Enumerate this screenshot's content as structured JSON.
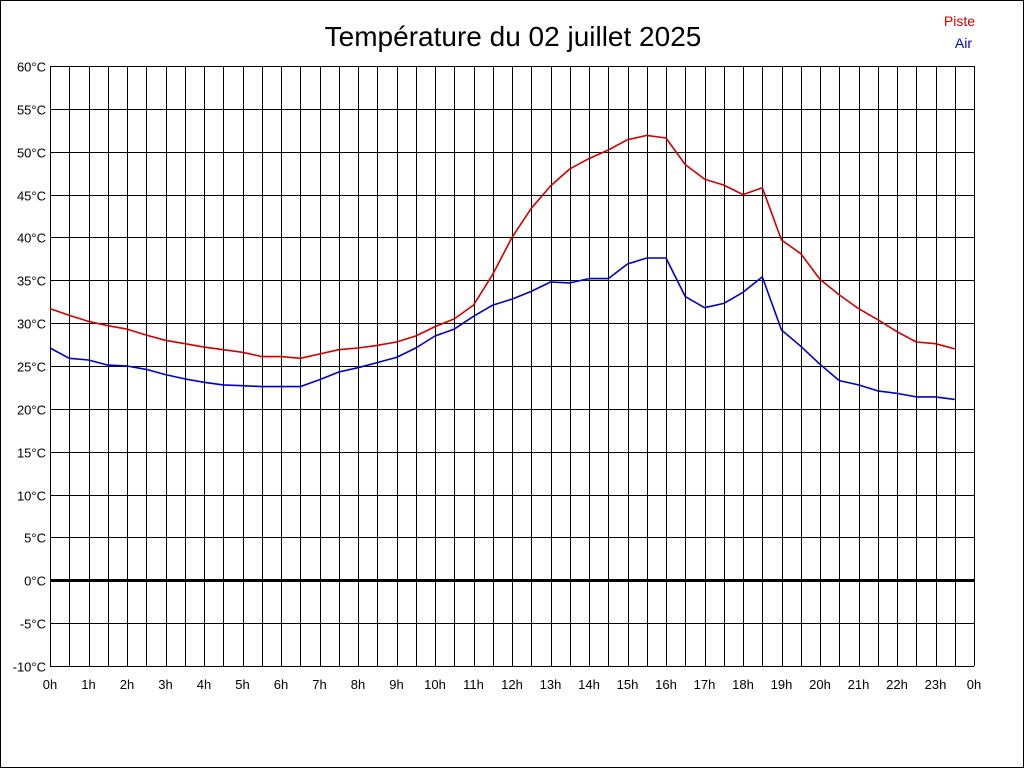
{
  "chart_data": {
    "type": "line",
    "title": "Température du 02 juillet 2025",
    "xlabel": "",
    "ylabel": "",
    "x": [
      0,
      0.5,
      1,
      1.5,
      2,
      2.5,
      3,
      3.5,
      4,
      4.5,
      5,
      5.5,
      6,
      6.5,
      7,
      7.5,
      8,
      8.5,
      9,
      9.5,
      10,
      10.5,
      11,
      11.5,
      12,
      12.5,
      13,
      13.5,
      14,
      14.5,
      15,
      15.5,
      16,
      16.5,
      17,
      17.5,
      18,
      18.5,
      19,
      19.5,
      20,
      20.5,
      21,
      21.5,
      22,
      22.5,
      23,
      23.5
    ],
    "x_tick_labels": [
      "0h",
      "1h",
      "2h",
      "3h",
      "4h",
      "5h",
      "6h",
      "7h",
      "8h",
      "9h",
      "10h",
      "11h",
      "12h",
      "13h",
      "14h",
      "15h",
      "16h",
      "17h",
      "18h",
      "19h",
      "20h",
      "21h",
      "22h",
      "23h",
      "0h"
    ],
    "xlim": [
      0,
      24
    ],
    "y_tick_labels": [
      "60°C",
      "55°C",
      "50°C",
      "45°C",
      "40°C",
      "35°C",
      "30°C",
      "25°C",
      "20°C",
      "15°C",
      "10°C",
      "5°C",
      "0°C",
      "-5°C",
      "-10°C"
    ],
    "ylim": [
      -10,
      60
    ],
    "grid": true,
    "legend_placement": "top-right",
    "series": [
      {
        "name": "Piste",
        "color": "#d00000",
        "values": [
          31.7,
          30.9,
          30.2,
          29.7,
          29.3,
          28.6,
          28.0,
          27.6,
          27.2,
          26.9,
          26.6,
          26.1,
          26.1,
          25.9,
          26.4,
          26.9,
          27.1,
          27.4,
          27.8,
          28.5,
          29.6,
          30.5,
          32.1,
          35.7,
          40.0,
          43.4,
          46.0,
          48.0,
          49.2,
          50.2,
          51.4,
          51.9,
          51.6,
          48.5,
          46.8,
          46.1,
          45.0,
          45.8,
          39.7,
          38.1,
          35.1,
          33.3,
          31.7,
          30.4,
          29.0,
          27.8,
          27.6,
          27.0
        ]
      },
      {
        "name": "Air",
        "color": "#0000c8",
        "values": [
          27.1,
          25.9,
          25.7,
          25.1,
          25.0,
          24.6,
          24.0,
          23.5,
          23.1,
          22.8,
          22.7,
          22.6,
          22.6,
          22.6,
          23.4,
          24.3,
          24.8,
          25.4,
          26.0,
          27.1,
          28.5,
          29.3,
          30.8,
          32.1,
          32.8,
          33.7,
          34.8,
          34.7,
          35.2,
          35.2,
          36.9,
          37.6,
          37.6,
          33.1,
          31.8,
          32.3,
          33.6,
          35.4,
          29.2,
          27.3,
          25.2,
          23.3,
          22.8,
          22.1,
          21.8,
          21.4,
          21.4,
          21.1
        ]
      }
    ]
  }
}
